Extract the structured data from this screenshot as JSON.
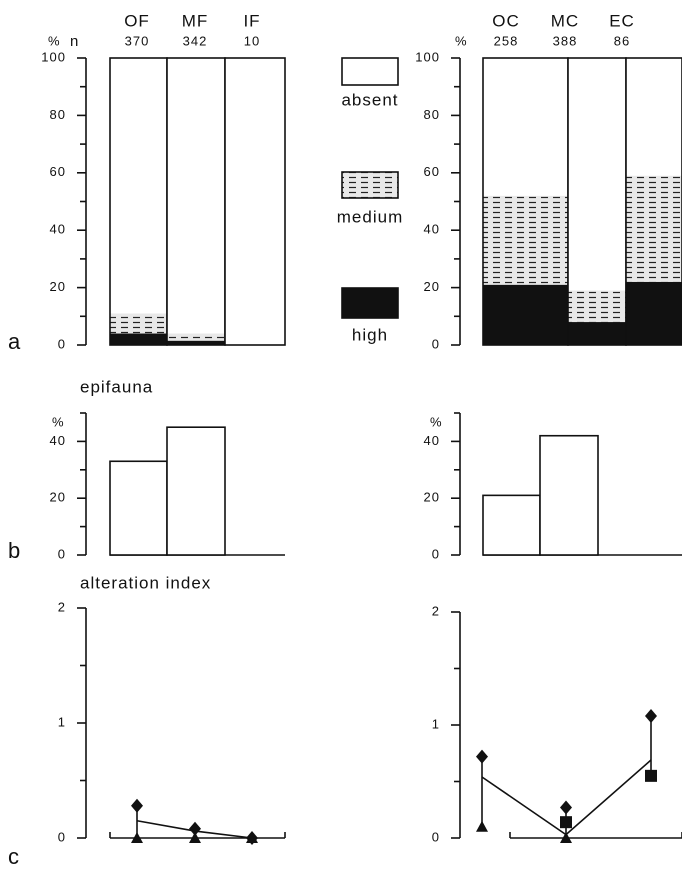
{
  "panel_labels": [
    "a",
    "b",
    "c"
  ],
  "chart_data": [
    {
      "type": "stacked_bar",
      "y_label": "%",
      "n_label": "n",
      "categories": [
        "OF",
        "MF",
        "IF"
      ],
      "n": [
        370,
        342,
        10
      ],
      "series": [
        {
          "name": "high",
          "color": "#111111",
          "values": [
            4,
            1.5,
            0
          ]
        },
        {
          "name": "medium",
          "color": "#e8e8e8",
          "pattern": "dashed",
          "values": [
            7,
            2.5,
            0
          ]
        },
        {
          "name": "absent",
          "color": "#ffffff",
          "values": [
            89,
            96,
            100
          ]
        }
      ],
      "ylim": [
        0,
        100
      ],
      "yticks": [
        0,
        20,
        40,
        60,
        80,
        100
      ],
      "minor_yticks": [
        10,
        30,
        50,
        70,
        90
      ],
      "legend": true
    },
    {
      "type": "stacked_bar",
      "y_label": "%",
      "categories": [
        "OC",
        "MC",
        "EC"
      ],
      "n": [
        258,
        388,
        86
      ],
      "series": [
        {
          "color": "#111111",
          "values": [
            21,
            8,
            22
          ]
        },
        {
          "color": "#e8e8e8",
          "pattern": "dashed",
          "values": [
            31,
            11,
            37
          ]
        },
        {
          "color": "#ffffff",
          "values": [
            48,
            81,
            41
          ]
        }
      ],
      "ylim": [
        0,
        100
      ],
      "yticks": [
        0,
        20,
        40,
        60,
        80,
        100
      ],
      "minor_yticks": [
        10,
        30,
        50,
        70,
        90
      ]
    },
    {
      "type": "bar",
      "title": "epifauna",
      "y_label": "%",
      "values": [
        33,
        45,
        0
      ],
      "color": "#ffffff",
      "ylim": [
        0,
        50
      ],
      "yticks": [
        0,
        20,
        40
      ],
      "minor_yticks": [
        10,
        30,
        50
      ]
    },
    {
      "type": "bar",
      "y_label": "%",
      "values": [
        21,
        42,
        0
      ],
      "color": "#ffffff",
      "ylim": [
        0,
        50
      ],
      "yticks": [
        0,
        20,
        40
      ],
      "minor_yticks": [
        10,
        30,
        50
      ]
    },
    {
      "type": "marker_line",
      "title": "alteration index",
      "series": [
        {
          "marker": "diamond",
          "values": [
            0.28,
            0.08,
            0
          ]
        },
        {
          "marker": "triangle",
          "values": [
            0,
            0,
            0
          ]
        },
        {
          "marker": "line",
          "values": [
            0.15,
            0.06,
            0
          ]
        }
      ],
      "ylim": [
        0,
        2
      ],
      "yticks": [
        0,
        1,
        2
      ],
      "minor_yticks": [
        0.5,
        1.5
      ]
    },
    {
      "type": "marker_line",
      "series": [
        {
          "marker": "diamond",
          "values": [
            0.72,
            0.27,
            1.08
          ]
        },
        {
          "marker": "triangle",
          "values": [
            0.1,
            0,
            null
          ]
        },
        {
          "marker": "square",
          "values": [
            null,
            0.14,
            0.55
          ]
        },
        {
          "marker": "line",
          "values": [
            0.54,
            0.03,
            0.69
          ]
        }
      ],
      "ylim": [
        0,
        2
      ],
      "yticks": [
        0,
        1,
        2
      ],
      "minor_yticks": [
        0.5,
        1.5
      ]
    }
  ]
}
